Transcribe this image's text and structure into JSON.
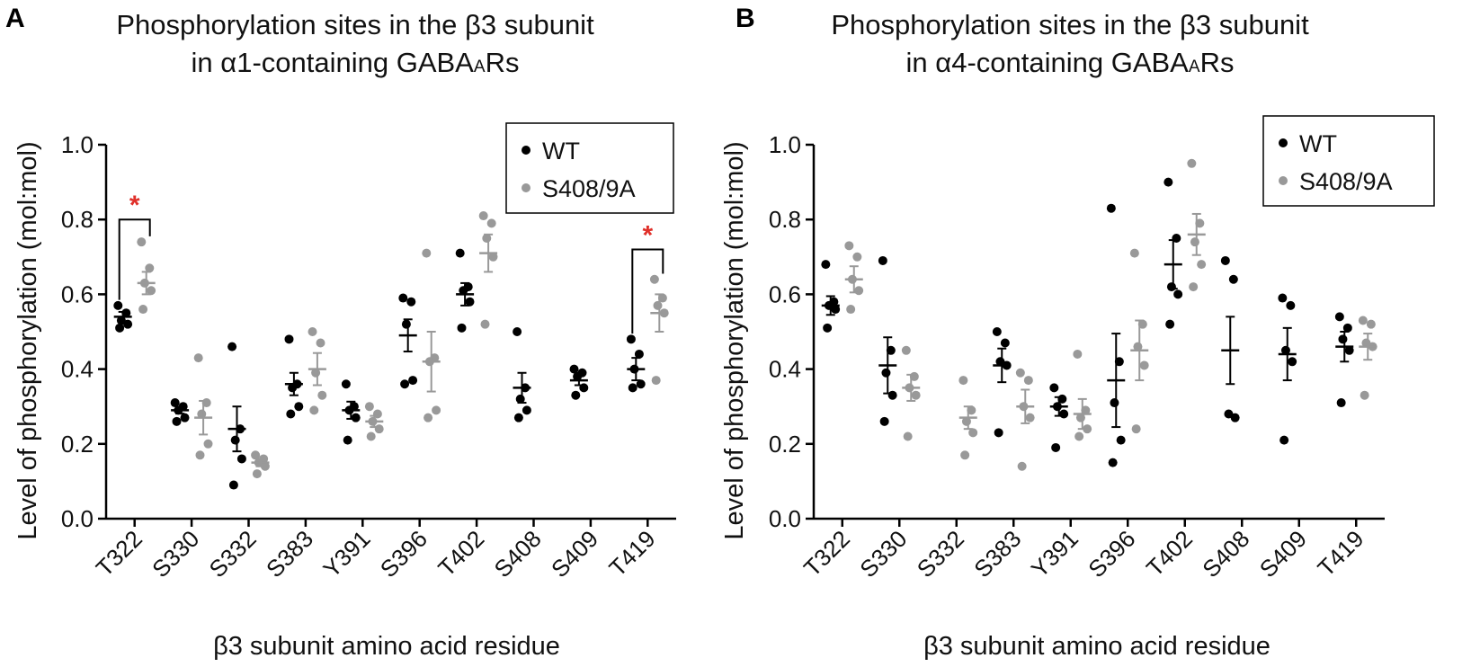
{
  "colors": {
    "wt": "#000000",
    "mut": "#999999",
    "sig": "#e0302a"
  },
  "chart_data": [
    {
      "panel_label": "A",
      "type": "scatter",
      "title_line1": "Phosphorylation sites in the β3 subunit",
      "title_line2_prefix": "in α1-containing GABA",
      "title_line2_sub": "A",
      "title_line2_suffix": "Rs",
      "ylabel": "Level of phosphorylation (mol:mol)",
      "xlabel": "β3 subunit amino acid residue",
      "ylim": [
        0,
        1.0
      ],
      "yticks": [
        "0.0",
        "0.2",
        "0.4",
        "0.6",
        "0.8",
        "1.0"
      ],
      "legend_position": "top-right",
      "categories": [
        "T322",
        "S330",
        "S332",
        "S383",
        "Y391",
        "S396",
        "T402",
        "S408",
        "S409",
        "T419"
      ],
      "series": [
        {
          "name": "WT",
          "points": [
            [
              0.57,
              0.55,
              0.53,
              0.52,
              0.51
            ],
            [
              0.31,
              0.3,
              0.29,
              0.27,
              0.26
            ],
            [
              0.46,
              0.24,
              0.21,
              0.16,
              0.09
            ],
            [
              0.48,
              0.36,
              0.35,
              0.3,
              0.28
            ],
            [
              0.36,
              0.3,
              0.29,
              0.27,
              0.21
            ],
            [
              0.59,
              0.58,
              0.52,
              0.37,
              0.36
            ],
            [
              0.71,
              0.62,
              0.61,
              0.58,
              0.51
            ],
            [
              0.5,
              0.35,
              0.32,
              0.29,
              0.27
            ],
            [
              0.4,
              0.39,
              0.38,
              0.35,
              0.33
            ],
            [
              0.48,
              0.44,
              0.4,
              0.36,
              0.35
            ]
          ],
          "mean": [
            0.54,
            0.29,
            0.24,
            0.36,
            0.29,
            0.49,
            0.6,
            0.35,
            0.37,
            0.4
          ],
          "sem": [
            0.013,
            0.009,
            0.06,
            0.03,
            0.023,
            0.043,
            0.03,
            0.04,
            0.013,
            0.03
          ]
        },
        {
          "name": "S408/9A",
          "points": [
            [
              0.74,
              0.67,
              0.63,
              0.61,
              0.56
            ],
            [
              0.43,
              0.31,
              0.28,
              0.2,
              0.17
            ],
            [
              0.17,
              0.16,
              0.15,
              0.14,
              0.12
            ],
            [
              0.5,
              0.47,
              0.39,
              0.33,
              0.29
            ],
            [
              0.3,
              0.28,
              0.26,
              0.24,
              0.22
            ],
            [
              0.71,
              0.43,
              0.42,
              0.29,
              0.27
            ],
            [
              0.81,
              0.79,
              0.75,
              0.7,
              0.52
            ],
            [],
            [],
            [
              0.64,
              0.59,
              0.57,
              0.55,
              0.37
            ]
          ],
          "mean": [
            0.63,
            0.27,
            0.15,
            0.4,
            0.26,
            0.42,
            0.71,
            null,
            null,
            0.55
          ],
          "sem": [
            0.03,
            0.045,
            0.01,
            0.043,
            0.015,
            0.08,
            0.05,
            null,
            null,
            0.05
          ]
        }
      ],
      "annotations": [
        {
          "text": "*",
          "category": "T322",
          "bracket_top": 0.8
        },
        {
          "text": "*",
          "category": "T419",
          "bracket_top": 0.72
        }
      ]
    },
    {
      "panel_label": "B",
      "type": "scatter",
      "title_line1": "Phosphorylation sites in the β3 subunit",
      "title_line2_prefix": "in α4-containing GABA",
      "title_line2_sub": "A",
      "title_line2_suffix": "Rs",
      "ylabel": "Level of phosphorylation (mol:mol)",
      "xlabel": "β3 subunit amino acid residue",
      "ylim": [
        0,
        1.0
      ],
      "yticks": [
        "0.0",
        "0.2",
        "0.4",
        "0.6",
        "0.8",
        "1.0"
      ],
      "legend_position": "top-right",
      "categories": [
        "T322",
        "S330",
        "S332",
        "S383",
        "Y391",
        "S396",
        "T402",
        "S408",
        "S409",
        "T419"
      ],
      "series": [
        {
          "name": "WT",
          "points": [
            [
              0.68,
              0.58,
              0.57,
              0.56,
              0.51
            ],
            [
              0.69,
              0.45,
              0.39,
              0.33,
              0.26
            ],
            [],
            [
              0.5,
              0.47,
              0.42,
              0.41,
              0.23
            ],
            [
              0.35,
              0.32,
              0.3,
              0.28,
              0.19
            ],
            [
              0.83,
              0.42,
              0.31,
              0.21,
              0.15
            ],
            [
              0.9,
              0.75,
              0.62,
              0.6,
              0.52
            ],
            [
              0.69,
              0.64,
              0.28,
              0.27
            ],
            [
              0.59,
              0.57,
              0.45,
              0.42,
              0.21
            ],
            [
              0.54,
              0.51,
              0.48,
              0.45,
              0.31
            ]
          ],
          "mean": [
            0.57,
            0.41,
            null,
            0.41,
            0.3,
            0.37,
            0.68,
            0.45,
            0.44,
            0.46
          ],
          "sem": [
            0.025,
            0.075,
            null,
            0.045,
            0.025,
            0.125,
            0.065,
            0.09,
            0.07,
            0.04
          ]
        },
        {
          "name": "S408/9A",
          "points": [
            [
              0.73,
              0.7,
              0.64,
              0.61,
              0.56
            ],
            [
              0.45,
              0.38,
              0.35,
              0.33,
              0.22
            ],
            [
              0.37,
              0.29,
              0.26,
              0.23,
              0.17
            ],
            [
              0.39,
              0.37,
              0.3,
              0.27,
              0.14
            ],
            [
              0.44,
              0.29,
              0.27,
              0.24,
              0.22
            ],
            [
              0.71,
              0.52,
              0.46,
              0.41,
              0.24
            ],
            [
              0.95,
              0.79,
              0.74,
              0.68,
              0.62
            ],
            [],
            [],
            [
              0.53,
              0.52,
              0.47,
              0.46,
              0.33
            ]
          ],
          "mean": [
            0.64,
            0.35,
            0.27,
            0.3,
            0.28,
            0.45,
            0.76,
            null,
            null,
            0.46
          ],
          "sem": [
            0.035,
            0.035,
            0.03,
            0.045,
            0.04,
            0.08,
            0.055,
            null,
            null,
            0.035
          ]
        }
      ],
      "annotations": []
    }
  ]
}
